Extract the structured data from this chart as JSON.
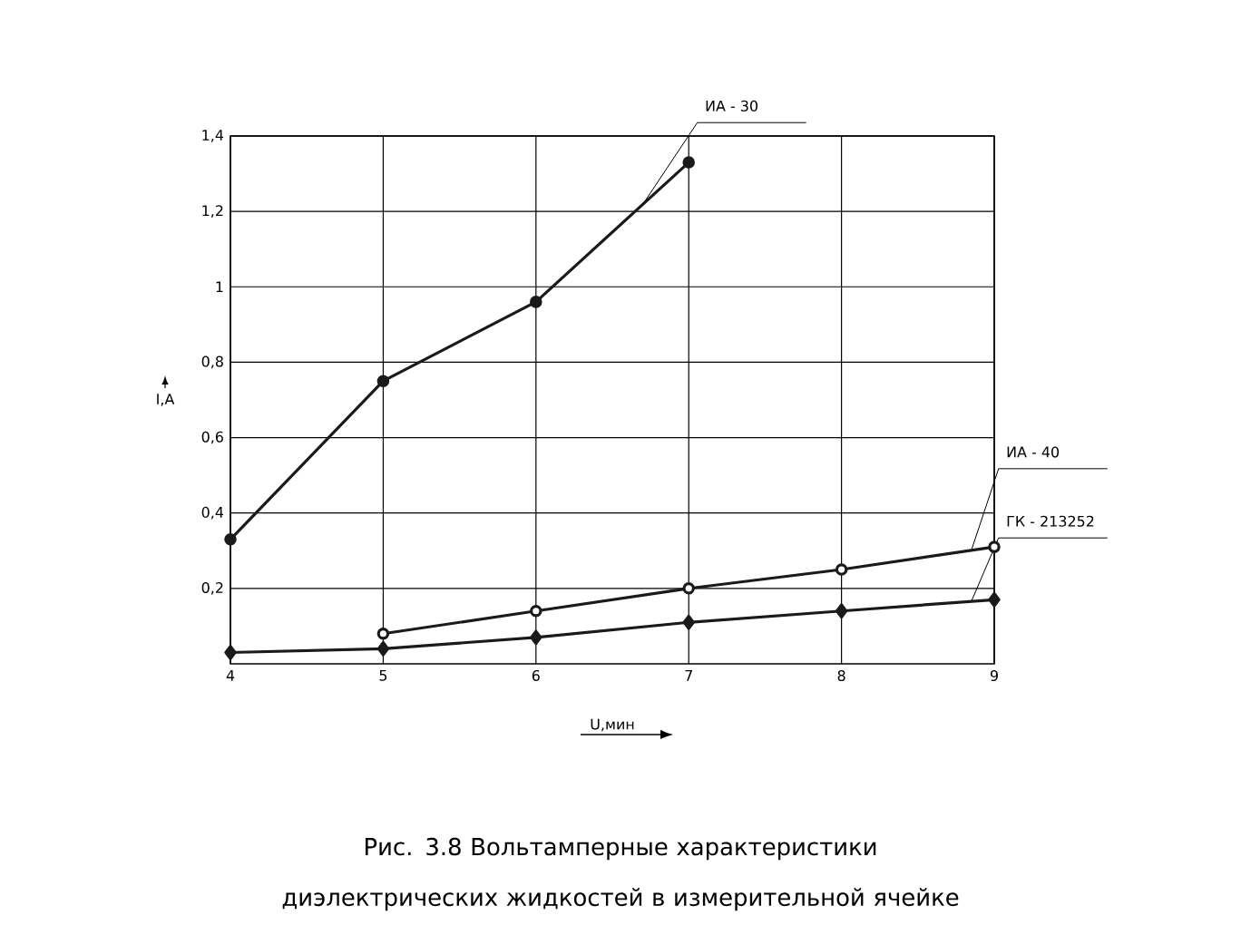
{
  "chart_data": {
    "type": "line",
    "title": "Рис. 3.8 Вольтамперные характеристики диэлектрических жидкостей в измерительной ячейке",
    "xlabel": "U,мин",
    "ylabel": "I,A",
    "x": [
      4,
      5,
      6,
      7,
      8,
      9
    ],
    "xlim": [
      4,
      9
    ],
    "xticks": [
      4,
      5,
      6,
      7,
      8,
      9
    ],
    "ylim": [
      0,
      1.4
    ],
    "yticks": [
      {
        "value": 0.2,
        "label": "0,2"
      },
      {
        "value": 0.4,
        "label": "0,4"
      },
      {
        "value": 0.6,
        "label": "0,6"
      },
      {
        "value": 0.8,
        "label": "0,8"
      },
      {
        "value": 1,
        "label": "1"
      },
      {
        "value": 1.2,
        "label": "1,2"
      },
      {
        "value": 1.4,
        "label": "1,4"
      }
    ],
    "grid": true,
    "legend": false,
    "series": [
      {
        "name": "ИА - 30",
        "color": "#1a1a1a",
        "marker": "circle",
        "values": [
          0.33,
          0.75,
          0.96,
          1.33,
          null,
          null
        ]
      },
      {
        "name": "ИА - 40",
        "color": "#1a1a1a",
        "marker": "open circle",
        "values": [
          null,
          0.08,
          0.14,
          0.2,
          0.25,
          0.31
        ]
      },
      {
        "name": "ГК - 213252",
        "color": "#1a1a1a",
        "marker": "diamond",
        "values": [
          0.03,
          0.04,
          0.07,
          0.11,
          0.14,
          0.17
        ]
      }
    ]
  }
}
